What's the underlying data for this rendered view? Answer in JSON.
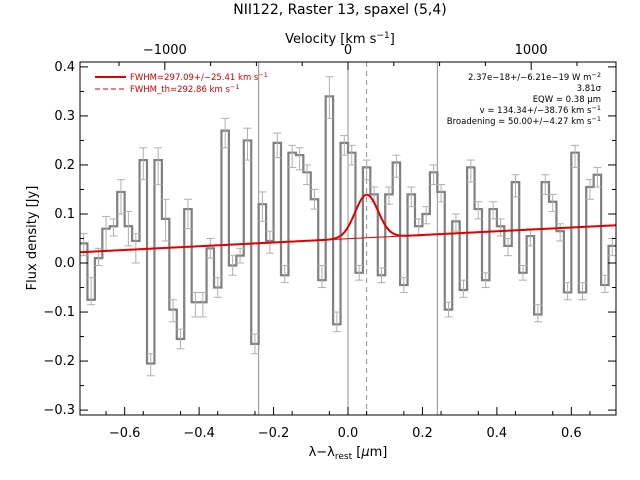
{
  "chart_data": {
    "type": "line",
    "title": "NII122, Raster 13, spaxel (5,4)",
    "xlabel": "λ−λ_rest [μm]",
    "xlabel_parts": [
      "λ−λ",
      "rest",
      " [",
      "μ",
      "m]"
    ],
    "ylabel": "Flux density [Jy]",
    "top_xlabel": "Velocity [km s⁻¹]",
    "top_xlabel_parts": [
      "Velocity [km s",
      "−1",
      "]"
    ],
    "xlim": [
      -0.72,
      0.72
    ],
    "ylim": [
      -0.31,
      0.41
    ],
    "x_ticks": [
      -0.6,
      -0.4,
      -0.2,
      0.0,
      0.2,
      0.4,
      0.6
    ],
    "x_tick_labels": [
      "−0.6",
      "−0.4",
      "−0.2",
      "0.0",
      "0.2",
      "0.4",
      "0.6"
    ],
    "y_ticks": [
      -0.3,
      -0.2,
      -0.1,
      0.0,
      0.1,
      0.2,
      0.3,
      0.4
    ],
    "y_tick_labels": [
      "−0.3",
      "−0.2",
      "−0.1",
      "0.0",
      "0.1",
      "0.2",
      "0.3",
      "0.4"
    ],
    "top_ticks_um": [
      -0.4921,
      0.0,
      0.4921
    ],
    "top_tick_labels": [
      "−1000",
      "0",
      "1000"
    ],
    "vertical_lines_um": [
      -0.24,
      0.0,
      0.24
    ],
    "line_center_um": 0.05,
    "series": [
      {
        "name": "spectrum",
        "style": "histogram",
        "color": "#808080",
        "x": [
          -0.72,
          -0.7,
          -0.68,
          -0.66,
          -0.64,
          -0.62,
          -0.6,
          -0.58,
          -0.56,
          -0.54,
          -0.52,
          -0.5,
          -0.48,
          -0.46,
          -0.44,
          -0.42,
          -0.4,
          -0.38,
          -0.36,
          -0.34,
          -0.32,
          -0.3,
          -0.28,
          -0.26,
          -0.24,
          -0.22,
          -0.2,
          -0.18,
          -0.16,
          -0.14,
          -0.12,
          -0.1,
          -0.08,
          -0.06,
          -0.04,
          -0.02,
          0.0,
          0.02,
          0.04,
          0.06,
          0.08,
          0.1,
          0.12,
          0.14,
          0.16,
          0.18,
          0.2,
          0.22,
          0.24,
          0.26,
          0.28,
          0.3,
          0.32,
          0.34,
          0.36,
          0.38,
          0.4,
          0.42,
          0.44,
          0.46,
          0.48,
          0.5,
          0.52,
          0.54,
          0.56,
          0.58,
          0.6,
          0.62,
          0.64,
          0.66,
          0.68,
          0.7
        ],
        "y": [
          0.04,
          -0.075,
          0.01,
          0.07,
          0.075,
          0.145,
          0.075,
          0.045,
          0.21,
          -0.205,
          0.21,
          0.09,
          -0.095,
          -0.155,
          0.11,
          -0.08,
          -0.08,
          0.03,
          -0.05,
          0.27,
          -0.005,
          0.015,
          0.25,
          -0.165,
          0.12,
          0.045,
          0.245,
          -0.025,
          0.225,
          0.22,
          0.185,
          0.13,
          -0.035,
          0.34,
          -0.125,
          0.245,
          0.225,
          -0.02,
          0.195,
          0.14,
          -0.025,
          0.14,
          0.205,
          -0.045,
          0.14,
          0.075,
          0.1,
          0.185,
          0.145,
          -0.095,
          0.085,
          -0.055,
          0.195,
          0.11,
          -0.035,
          0.11,
          0.075,
          0.035,
          0.165,
          -0.02,
          0.055,
          -0.105,
          0.165,
          0.125,
          0.065,
          -0.06,
          0.225,
          -0.06,
          0.155,
          0.18,
          -0.045,
          0.035
        ],
        "err_low": [
          0.06,
          -0.03,
          0.03,
          0.025,
          0.055,
          0.1,
          0.035,
          -0.0,
          0.17,
          -0.23,
          0.16,
          0.045,
          -0.12,
          -0.175,
          0.07,
          -0.11,
          -0.11,
          0.01,
          -0.07,
          0.235,
          -0.025,
          -0.0,
          0.21,
          -0.185,
          0.085,
          0.02,
          0.215,
          -0.04,
          0.195,
          0.19,
          0.16,
          0.11,
          -0.005,
          0.295,
          -0.1,
          0.22,
          0.2,
          -0.035,
          0.17,
          0.125,
          -0.04,
          0.12,
          0.175,
          -0.03,
          0.115,
          0.055,
          0.08,
          0.16,
          0.125,
          -0.08,
          0.065,
          -0.035,
          0.165,
          0.09,
          -0.02,
          0.09,
          0.055,
          0.015,
          0.135,
          -0.005,
          0.035,
          -0.085,
          0.14,
          0.105,
          0.045,
          -0.04,
          0.195,
          -0.04,
          0.13,
          0.155,
          -0.025,
          0.015
        ],
        "err_high": [
          0.015,
          -0.085,
          -0.005,
          0.095,
          0.09,
          0.17,
          0.105,
          0.06,
          0.235,
          -0.185,
          0.235,
          0.13,
          -0.075,
          -0.135,
          0.13,
          -0.06,
          -0.06,
          0.05,
          -0.03,
          0.295,
          0.015,
          0.03,
          0.275,
          -0.145,
          0.145,
          0.065,
          0.265,
          -0.005,
          0.24,
          0.235,
          0.2,
          0.15,
          -0.05,
          0.38,
          -0.14,
          0.26,
          0.24,
          -0.005,
          0.21,
          0.155,
          -0.01,
          0.155,
          0.22,
          -0.06,
          0.155,
          0.09,
          0.115,
          0.2,
          0.16,
          -0.11,
          0.1,
          -0.07,
          0.21,
          0.125,
          -0.05,
          0.125,
          0.09,
          0.05,
          0.18,
          -0.035,
          0.07,
          -0.12,
          0.18,
          0.14,
          0.08,
          -0.075,
          0.24,
          -0.075,
          0.17,
          0.195,
          -0.06,
          0.05
        ]
      },
      {
        "name": "FWHM=297.09+/−25.41 km s⁻¹",
        "color": "#e00000",
        "style": "fit",
        "continuum": {
          "x": [
            -0.72,
            0.72
          ],
          "y": [
            0.022,
            0.077
          ]
        },
        "gaussian": {
          "center": 0.05,
          "peak_above_continuum": 0.088,
          "sigma_um": 0.0309
        }
      },
      {
        "name": "FWHM_th=292.86 km s⁻¹",
        "color": "#e00000",
        "style": "dashed"
      }
    ],
    "legend": {
      "placement": "top-left",
      "entries": [
        {
          "text": "FWHM=297.09+/−25.41 km s",
          "sup": "−1",
          "style": "solid"
        },
        {
          "text": "FWHM_th=292.86 km s",
          "sup": "−1",
          "style": "dashed"
        }
      ]
    },
    "info_lines": [
      {
        "text": "2.37e−18+/−6.21e−19 W m",
        "sup": "−2"
      },
      {
        "text": "3.81σ",
        "sup": ""
      },
      {
        "text": "EQW = 0.38 μm",
        "sup": ""
      },
      {
        "text": "v = 134.34+/−38.76 km s",
        "sup": "−1"
      },
      {
        "text": "Broadening = 50.00+/−4.27 km s",
        "sup": "−1"
      }
    ],
    "grid": false
  }
}
